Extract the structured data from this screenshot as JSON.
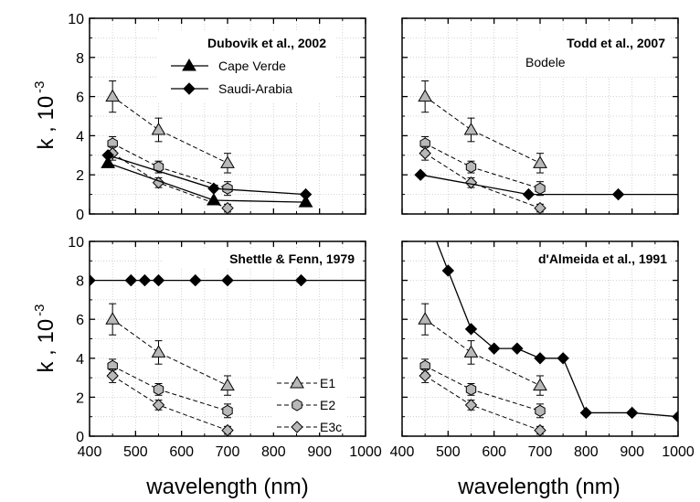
{
  "figure": {
    "xlabel": "wavelength  (nm)",
    "ylabel_main": "k ,  10",
    "ylabel_exp": "-3"
  },
  "colors": {
    "e_series": "#b8b8b8",
    "reference": "#000000",
    "grid": "#c8c8c8"
  },
  "x_ticks": [
    400,
    500,
    600,
    700,
    800,
    900,
    1000
  ],
  "y_ticks": [
    0,
    2,
    4,
    6,
    8,
    10
  ],
  "e_series": [
    {
      "name": "E1",
      "marker": "triangle",
      "x": [
        450,
        550,
        700
      ],
      "y": [
        6.0,
        4.3,
        2.6
      ],
      "err": [
        0.8,
        0.6,
        0.5
      ]
    },
    {
      "name": "E2",
      "marker": "hexagon",
      "x": [
        450,
        550,
        700
      ],
      "y": [
        3.6,
        2.4,
        1.3
      ],
      "err": [
        0.35,
        0.3,
        0.35
      ]
    },
    {
      "name": "E3c",
      "marker": "diamond",
      "x": [
        450,
        550,
        700
      ],
      "y": [
        3.1,
        1.6,
        0.3
      ],
      "err": [
        0.35,
        0.25,
        0.2
      ]
    }
  ],
  "chart_data": [
    {
      "type": "scatter",
      "panel": "top-left",
      "title": "Dubovik et al., 2002",
      "xlim": [
        400,
        1000
      ],
      "ylim": [
        0,
        10
      ],
      "grid": true,
      "legend": {
        "position": "top-right",
        "entries": [
          "Cape Verde",
          "Saudi-Arabia"
        ]
      },
      "series": [
        {
          "name": "Cape Verde",
          "marker": "triangle",
          "x": [
            440,
            670,
            870
          ],
          "y": [
            2.6,
            0.7,
            0.6
          ]
        },
        {
          "name": "Saudi-Arabia",
          "marker": "diamond",
          "x": [
            440,
            670,
            870
          ],
          "y": [
            3.0,
            1.3,
            1.0
          ]
        }
      ]
    },
    {
      "type": "scatter",
      "panel": "top-right",
      "title": "Todd et al., 2007",
      "subtitle": "Bodele",
      "xlim": [
        400,
        1000
      ],
      "ylim": [
        0,
        10
      ],
      "grid": true,
      "series": [
        {
          "name": "Bodele",
          "marker": "diamond",
          "x": [
            440,
            675,
            870
          ],
          "y": [
            2.0,
            1.0,
            1.0
          ],
          "tail_to": 1000
        }
      ]
    },
    {
      "type": "scatter",
      "panel": "bottom-left",
      "title": "Shettle & Fenn, 1979",
      "xlim": [
        400,
        1000
      ],
      "ylim": [
        0,
        10
      ],
      "grid": true,
      "legend": {
        "position": "bottom-right",
        "entries": [
          "E1",
          "E2",
          "E3c"
        ]
      },
      "series": [
        {
          "marker": "diamond",
          "x": [
            400,
            490,
            520,
            550,
            630,
            700,
            860
          ],
          "y": [
            8,
            8,
            8,
            8,
            8,
            8,
            8
          ],
          "tail_to": 1000
        }
      ]
    },
    {
      "type": "scatter",
      "panel": "bottom-right",
      "title": "d'Almeida et al., 1991",
      "xlim": [
        400,
        1000
      ],
      "ylim": [
        0,
        10
      ],
      "grid": true,
      "series": [
        {
          "marker": "diamond",
          "x": [
            500,
            550,
            600,
            650,
            700,
            750,
            800,
            900,
            1000
          ],
          "y": [
            8.5,
            5.5,
            4.5,
            4.5,
            4.0,
            4.0,
            1.2,
            1.2,
            1.0
          ],
          "lead_from": [
            475,
            10
          ]
        }
      ]
    }
  ]
}
